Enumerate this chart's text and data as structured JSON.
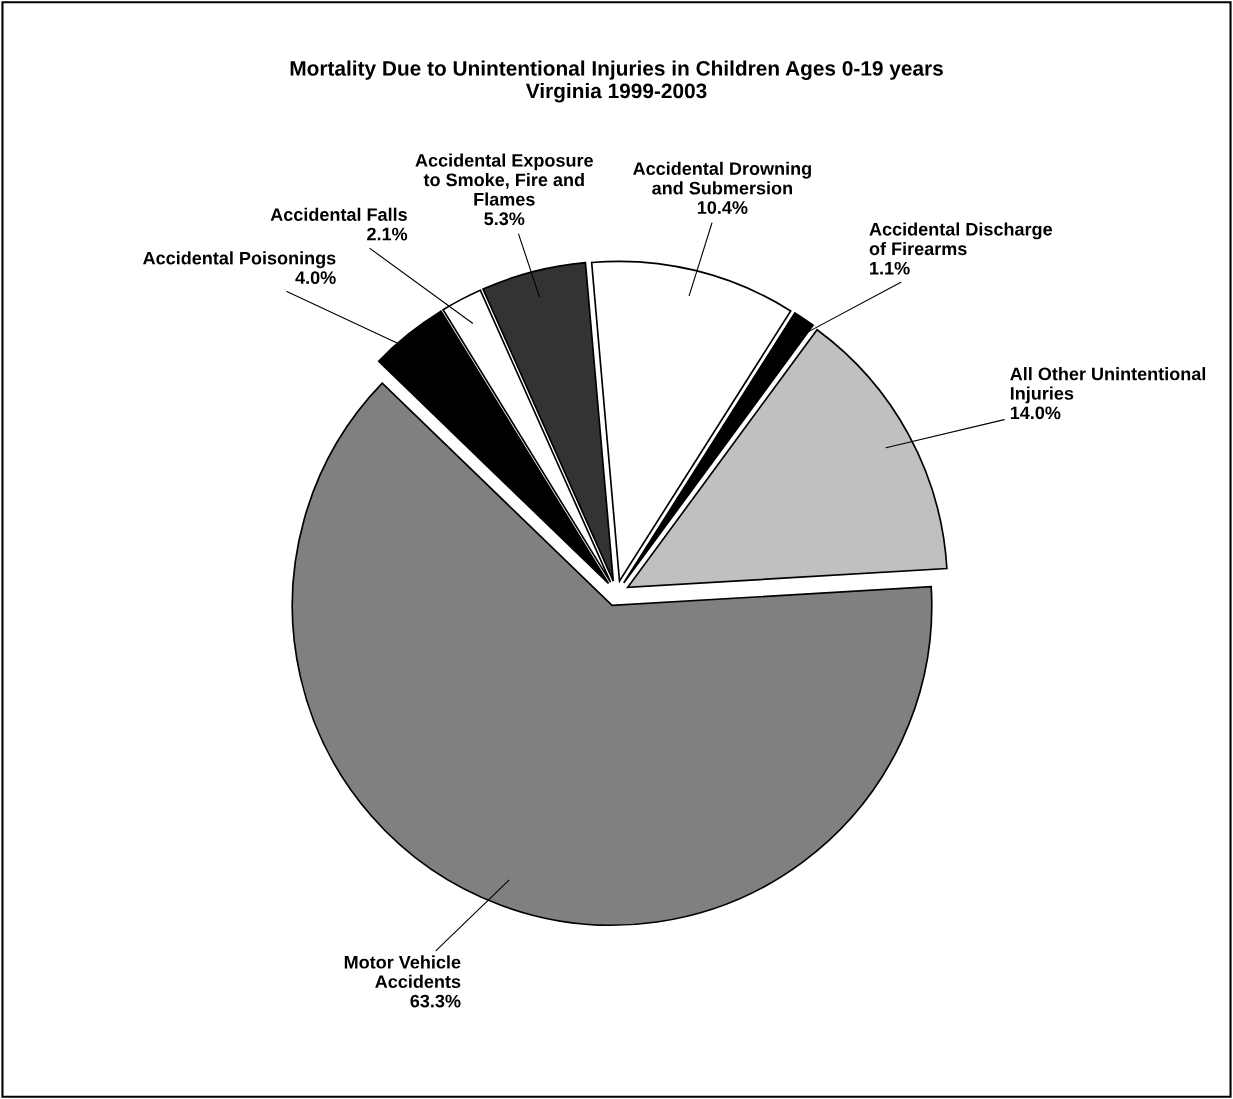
{
  "chart_data": {
    "type": "pie",
    "title": "Mortality Due to Unintentional Injuries in Children Ages 0-19 years\nVirginia 1999-2003",
    "categories": [
      "Accidental Drowning\nand Submersion",
      "Accidental Discharge\nof Firearms",
      "All Other Unintentional\nInjuries",
      "Motor Vehicle\nAccidents",
      "Accidental Poisonings",
      "Accidental Falls",
      "Accidental Exposure\nto Smoke, Fire and\nFlames"
    ],
    "values": [
      10.4,
      1.1,
      14.0,
      63.3,
      4.0,
      2.1,
      5.3
    ],
    "value_labels": [
      "10.4%",
      "1.1%",
      "14.0%",
      "63.3%",
      "4.0%",
      "2.1%",
      "5.3%"
    ],
    "colors": [
      "#ffffff",
      "#000000",
      "#c0c0c0",
      "#808080",
      "#000000",
      "#ffffff",
      "#333333"
    ],
    "legend": false
  }
}
